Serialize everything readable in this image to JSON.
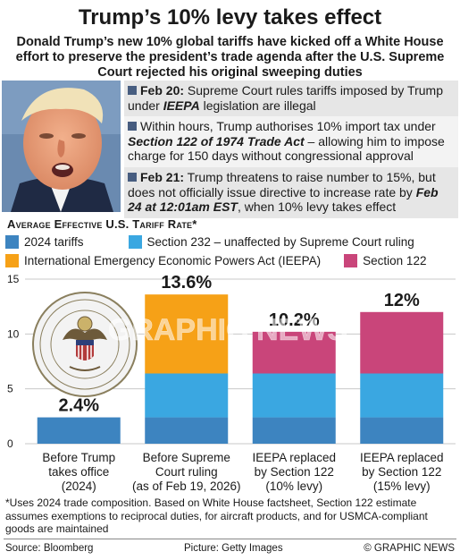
{
  "header": {
    "title": "Trump’s 10% levy takes effect",
    "subtitle": "Donald Trump’s new 10% global tariffs have kicked off a White House effort to preserve the president’s trade agenda after the U.S. Supreme Court rejected his original sweeping duties"
  },
  "events": [
    {
      "date": "Feb 20:",
      "text_before": "Supreme Court rules tariffs imposed by Trump under ",
      "emph": "IEEPA",
      "text_after": " legislation are illegal"
    },
    {
      "date": "",
      "text_before": "Within hours, Trump authorises 10% import tax under ",
      "emph": "Section 122 of 1974 Trade Act",
      "text_after": " – allowing him to impose charge for 150 days without congressional approval"
    },
    {
      "date": "Feb 21:",
      "text_before": "Trump threatens to raise number to 15%, but does not officially issue directive to increase rate by ",
      "emph": "Feb 24 at 12:01am EST",
      "text_after": ", when 10% levy takes effect"
    }
  ],
  "colors": {
    "tariffs_2024": "#3d84c0",
    "section_232": "#3aa7e1",
    "ieepa": "#f6a117",
    "section_122": "#c9457a",
    "bullet": "#475d80"
  },
  "chart_data": {
    "type": "bar",
    "title": "Average Effective U.S. Tariff Rate*",
    "stacked": true,
    "categories": [
      "Before Trump takes office (2024)",
      "Before Supreme Court ruling (as of Feb 19, 2026)",
      "IEEPA replaced by Section 122 (10% levy)",
      "IEEPA replaced by Section 122 (15% levy)"
    ],
    "category_lines": [
      [
        "Before Trump",
        "takes office",
        "(2024)"
      ],
      [
        "Before Supreme",
        "Court ruling",
        "(as of Feb 19, 2026)"
      ],
      [
        "IEEPA replaced",
        "by Section 122",
        "(10% levy)"
      ],
      [
        "IEEPA replaced",
        "by Section 122",
        "(15% levy)"
      ]
    ],
    "series": [
      {
        "name": "2024 tariffs",
        "color": "#3d84c0",
        "values": [
          2.4,
          2.4,
          2.4,
          2.4
        ]
      },
      {
        "name": "Section 232 – unaffected by Supreme Court ruling",
        "color": "#3aa7e1",
        "values": [
          0,
          4.0,
          4.0,
          4.0
        ]
      },
      {
        "name": "International Emergency Economic Powers Act (IEEPA)",
        "color": "#f6a117",
        "values": [
          0,
          7.2,
          0,
          0
        ]
      },
      {
        "name": "Section 122",
        "color": "#c9457a",
        "values": [
          0,
          0,
          3.8,
          5.6
        ]
      }
    ],
    "totals": [
      "2.4%",
      "13.6%",
      "10.2%",
      "12%"
    ],
    "ylim": [
      0,
      15
    ],
    "yticks": [
      "0",
      "5",
      "10",
      "15"
    ],
    "ytick_values": [
      0,
      5,
      10,
      15
    ],
    "grid": true,
    "legend_position": "top"
  },
  "footnote": "*Uses 2024 trade composition. Based on White House factsheet, Section 122 estimate assumes exemptions to reciprocal duties, for aircraft products, and for USMCA-compliant goods are maintained",
  "footer": {
    "source": "Source: Bloomberg",
    "picture": "Picture: Getty Images",
    "credit": "© GRAPHIC NEWS"
  },
  "watermark": "GRAPHIC NEWS"
}
